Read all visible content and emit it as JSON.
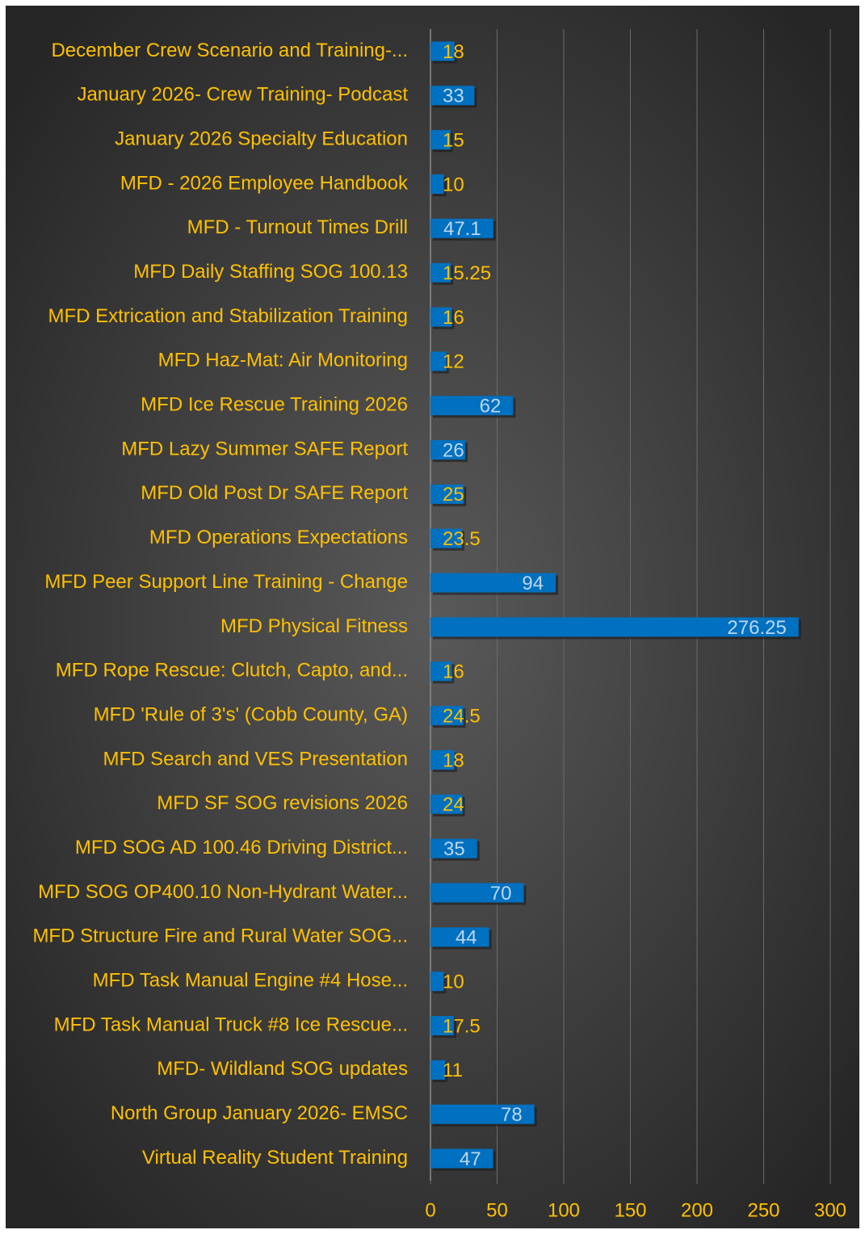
{
  "chart_data": {
    "type": "bar",
    "orientation": "horizontal",
    "categories": [
      "December Crew Scenario and Training-...",
      "January 2026- Crew Training- Podcast",
      "January 2026 Specialty Education",
      "MFD - 2026 Employee Handbook",
      "MFD - Turnout Times Drill",
      "MFD Daily Staffing SOG 100.13",
      "MFD Extrication and Stabilization Training",
      "MFD Haz-Mat: Air Monitoring",
      "MFD Ice Rescue Training 2026",
      "MFD Lazy Summer SAFE Report",
      "MFD Old Post Dr SAFE Report",
      "MFD Operations Expectations",
      "MFD Peer Support Line Training - Change",
      "MFD Physical Fitness",
      "MFD Rope Rescue: Clutch, Capto, and...",
      "MFD 'Rule of 3's' (Cobb County, GA)",
      "MFD Search and VES Presentation",
      "MFD SF SOG revisions 2026",
      "MFD SOG AD 100.46 Driving District...",
      "MFD SOG OP400.10 Non-Hydrant Water...",
      "MFD Structure Fire and Rural Water SOG...",
      "MFD Task Manual Engine #4 Hose...",
      "MFD Task Manual Truck #8 Ice Rescue...",
      "MFD- Wildland SOG updates",
      "North Group January 2026- EMSC",
      "Virtual Reality Student Training"
    ],
    "values": [
      18,
      33,
      15,
      10,
      47.1,
      15.25,
      16,
      12,
      62,
      26,
      25,
      23.5,
      94,
      276.25,
      16,
      24.5,
      18,
      24,
      35,
      70,
      44,
      10,
      17.5,
      11,
      78,
      47
    ],
    "color": "#0070c0",
    "xlim": [
      0,
      300
    ],
    "xticks": [
      0,
      50,
      100,
      150,
      200,
      250,
      300
    ],
    "grid": true
  }
}
